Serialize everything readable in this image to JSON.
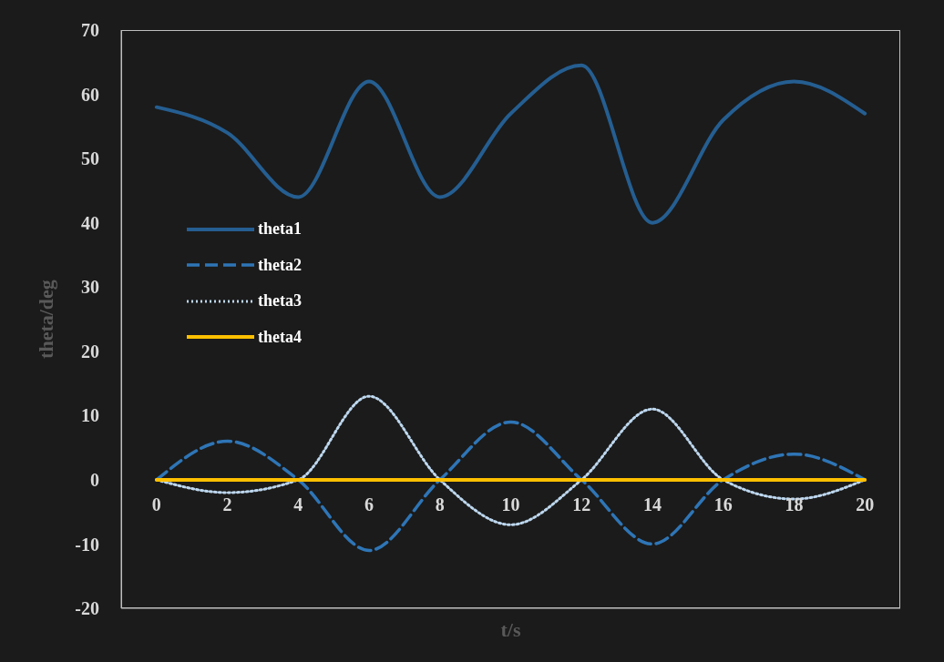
{
  "chart_data": {
    "type": "line",
    "xlabel": "t/s",
    "ylabel": "theta/deg",
    "categories": [
      "0",
      "2",
      "4",
      "6",
      "8",
      "10",
      "12",
      "14",
      "16",
      "18",
      "20"
    ],
    "series": [
      {
        "name": "theta1",
        "color": "#255e91",
        "line_style": "solid",
        "values": [
          58,
          54,
          44,
          62,
          44,
          57,
          64.5,
          40,
          56,
          62,
          57
        ]
      },
      {
        "name": "theta2",
        "color": "#2e75b6",
        "line_style": "dashed",
        "values": [
          0,
          6,
          0,
          -11,
          0,
          9,
          0,
          -10,
          0,
          4,
          0
        ]
      },
      {
        "name": "theta3",
        "color": "#bdd7ee",
        "line_style": "dotted",
        "values": [
          0,
          -2,
          0,
          13,
          0,
          -7,
          0,
          11,
          0,
          -3,
          0
        ]
      },
      {
        "name": "theta4",
        "color": "#ffc000",
        "line_style": "solid",
        "values": [
          0,
          0,
          0,
          0,
          0,
          0,
          0,
          0,
          0,
          0,
          0
        ]
      }
    ],
    "ylim": [
      -20,
      70
    ],
    "yticks": [
      -20,
      -10,
      0,
      10,
      20,
      30,
      40,
      50,
      60,
      70
    ],
    "grid": false,
    "legend": "left",
    "marker": "none"
  }
}
